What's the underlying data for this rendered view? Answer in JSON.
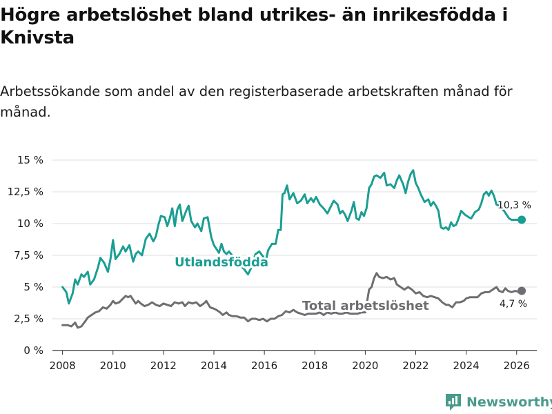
{
  "title": "Högre arbetslöshet bland utrikes- än inrikesfödda i Knivsta",
  "subtitle": "Arbetssökande som andel av den registerbaserade arbetskraften månad för månad.",
  "brand": {
    "name": "Newsworthy",
    "color": "#4a9a8c"
  },
  "chart_data": {
    "type": "line",
    "title": "Högre arbetslöshet bland utrikes- än inrikesfödda i Knivsta",
    "xlabel": "",
    "ylabel": "",
    "xlim": [
      2007.6,
      2026.8
    ],
    "ylim": [
      0,
      15
    ],
    "grid": true,
    "x_ticks": [
      2008,
      2010,
      2012,
      2014,
      2016,
      2018,
      2020,
      2022,
      2024,
      2026
    ],
    "x_tick_labels": [
      "2008",
      "2010",
      "2012",
      "2014",
      "2016",
      "2018",
      "2020",
      "2022",
      "2024",
      "2026"
    ],
    "y_ticks": [
      0,
      2.5,
      5,
      7.5,
      10,
      12.5,
      15
    ],
    "y_tick_labels": [
      "0 %",
      "2,5 %",
      "5 %",
      "7,5 %",
      "10 %",
      "12,5 %",
      "15 %"
    ],
    "series": [
      {
        "name": "Utlandsfödda",
        "color": "#1a9e93",
        "end_label": "10,3 %",
        "points": [
          [
            2008.0,
            5.0
          ],
          [
            2008.15,
            4.6
          ],
          [
            2008.25,
            3.7
          ],
          [
            2008.4,
            4.5
          ],
          [
            2008.5,
            5.6
          ],
          [
            2008.6,
            5.2
          ],
          [
            2008.75,
            6.0
          ],
          [
            2008.85,
            5.8
          ],
          [
            2009.0,
            6.2
          ],
          [
            2009.1,
            5.2
          ],
          [
            2009.25,
            5.6
          ],
          [
            2009.4,
            6.5
          ],
          [
            2009.5,
            7.3
          ],
          [
            2009.65,
            6.9
          ],
          [
            2009.8,
            6.2
          ],
          [
            2009.9,
            7.2
          ],
          [
            2010.0,
            8.7
          ],
          [
            2010.1,
            7.2
          ],
          [
            2010.25,
            7.6
          ],
          [
            2010.4,
            8.2
          ],
          [
            2010.5,
            7.8
          ],
          [
            2010.65,
            8.3
          ],
          [
            2010.8,
            7.0
          ],
          [
            2010.9,
            7.6
          ],
          [
            2011.0,
            7.8
          ],
          [
            2011.15,
            7.5
          ],
          [
            2011.3,
            8.8
          ],
          [
            2011.45,
            9.2
          ],
          [
            2011.6,
            8.6
          ],
          [
            2011.7,
            9.0
          ],
          [
            2011.8,
            9.9
          ],
          [
            2011.9,
            10.6
          ],
          [
            2012.05,
            10.5
          ],
          [
            2012.15,
            9.8
          ],
          [
            2012.25,
            10.4
          ],
          [
            2012.35,
            11.2
          ],
          [
            2012.45,
            9.8
          ],
          [
            2012.55,
            11.1
          ],
          [
            2012.65,
            11.5
          ],
          [
            2012.75,
            10.2
          ],
          [
            2012.9,
            11.0
          ],
          [
            2013.0,
            11.4
          ],
          [
            2013.1,
            10.2
          ],
          [
            2013.25,
            9.7
          ],
          [
            2013.35,
            10.0
          ],
          [
            2013.5,
            9.4
          ],
          [
            2013.6,
            10.4
          ],
          [
            2013.75,
            10.5
          ],
          [
            2013.9,
            8.9
          ],
          [
            2014.0,
            8.3
          ],
          [
            2014.1,
            8.0
          ],
          [
            2014.2,
            7.7
          ],
          [
            2014.3,
            8.4
          ],
          [
            2014.4,
            7.8
          ],
          [
            2014.5,
            7.6
          ],
          [
            2014.6,
            7.8
          ],
          [
            2014.8,
            7.3
          ],
          [
            2015.0,
            6.8
          ],
          [
            2015.2,
            6.4
          ],
          [
            2015.35,
            6.0
          ],
          [
            2015.5,
            6.6
          ],
          [
            2015.65,
            7.6
          ],
          [
            2015.8,
            7.8
          ],
          [
            2015.95,
            7.4
          ],
          [
            2016.05,
            7.0
          ],
          [
            2016.15,
            7.9
          ],
          [
            2016.3,
            8.4
          ],
          [
            2016.45,
            8.4
          ],
          [
            2016.55,
            9.5
          ],
          [
            2016.65,
            9.5
          ],
          [
            2016.72,
            12.3
          ],
          [
            2016.8,
            12.4
          ],
          [
            2016.9,
            13.0
          ],
          [
            2017.0,
            11.9
          ],
          [
            2017.15,
            12.4
          ],
          [
            2017.3,
            11.6
          ],
          [
            2017.45,
            11.8
          ],
          [
            2017.6,
            12.3
          ],
          [
            2017.7,
            11.6
          ],
          [
            2017.85,
            12.0
          ],
          [
            2017.95,
            11.7
          ],
          [
            2018.05,
            12.1
          ],
          [
            2018.2,
            11.5
          ],
          [
            2018.35,
            11.2
          ],
          [
            2018.5,
            10.8
          ],
          [
            2018.65,
            11.4
          ],
          [
            2018.75,
            11.8
          ],
          [
            2018.9,
            11.5
          ],
          [
            2019.0,
            10.8
          ],
          [
            2019.1,
            11.0
          ],
          [
            2019.2,
            10.7
          ],
          [
            2019.3,
            10.2
          ],
          [
            2019.45,
            11.0
          ],
          [
            2019.55,
            11.7
          ],
          [
            2019.65,
            10.4
          ],
          [
            2019.75,
            10.3
          ],
          [
            2019.85,
            10.9
          ],
          [
            2019.95,
            10.6
          ],
          [
            2020.05,
            11.2
          ],
          [
            2020.15,
            12.8
          ],
          [
            2020.25,
            13.1
          ],
          [
            2020.35,
            13.7
          ],
          [
            2020.45,
            13.8
          ],
          [
            2020.6,
            13.6
          ],
          [
            2020.75,
            14.0
          ],
          [
            2020.85,
            13.0
          ],
          [
            2021.0,
            13.1
          ],
          [
            2021.15,
            12.8
          ],
          [
            2021.25,
            13.4
          ],
          [
            2021.35,
            13.8
          ],
          [
            2021.5,
            13.1
          ],
          [
            2021.6,
            12.4
          ],
          [
            2021.7,
            13.3
          ],
          [
            2021.8,
            13.9
          ],
          [
            2021.9,
            14.2
          ],
          [
            2022.0,
            13.2
          ],
          [
            2022.1,
            12.8
          ],
          [
            2022.2,
            12.3
          ],
          [
            2022.35,
            11.7
          ],
          [
            2022.5,
            11.9
          ],
          [
            2022.6,
            11.4
          ],
          [
            2022.7,
            11.7
          ],
          [
            2022.8,
            11.4
          ],
          [
            2022.9,
            11.0
          ],
          [
            2023.0,
            9.7
          ],
          [
            2023.1,
            9.6
          ],
          [
            2023.2,
            9.7
          ],
          [
            2023.3,
            9.5
          ],
          [
            2023.4,
            10.1
          ],
          [
            2023.5,
            9.8
          ],
          [
            2023.6,
            9.9
          ],
          [
            2023.7,
            10.4
          ],
          [
            2023.8,
            11.0
          ],
          [
            2023.95,
            10.7
          ],
          [
            2024.1,
            10.5
          ],
          [
            2024.2,
            10.4
          ],
          [
            2024.35,
            10.9
          ],
          [
            2024.5,
            11.1
          ],
          [
            2024.6,
            11.6
          ],
          [
            2024.7,
            12.3
          ],
          [
            2024.8,
            12.5
          ],
          [
            2024.9,
            12.2
          ],
          [
            2025.0,
            12.6
          ],
          [
            2025.1,
            12.2
          ],
          [
            2025.2,
            11.5
          ],
          [
            2025.3,
            11.4
          ],
          [
            2025.4,
            11.2
          ],
          [
            2025.5,
            11.0
          ],
          [
            2025.6,
            10.7
          ],
          [
            2025.7,
            10.4
          ],
          [
            2025.8,
            10.3
          ],
          [
            2026.0,
            10.3
          ],
          [
            2026.2,
            10.3
          ]
        ]
      },
      {
        "name": "Total arbetslöshet",
        "color": "#6e6e72",
        "end_label": "4,7 %",
        "points": [
          [
            2008.0,
            2.0
          ],
          [
            2008.2,
            2.0
          ],
          [
            2008.35,
            1.9
          ],
          [
            2008.5,
            2.2
          ],
          [
            2008.6,
            1.8
          ],
          [
            2008.75,
            1.9
          ],
          [
            2008.9,
            2.3
          ],
          [
            2009.0,
            2.6
          ],
          [
            2009.15,
            2.8
          ],
          [
            2009.3,
            3.0
          ],
          [
            2009.45,
            3.1
          ],
          [
            2009.6,
            3.4
          ],
          [
            2009.75,
            3.3
          ],
          [
            2009.9,
            3.6
          ],
          [
            2010.0,
            3.9
          ],
          [
            2010.1,
            3.7
          ],
          [
            2010.25,
            3.8
          ],
          [
            2010.35,
            4.0
          ],
          [
            2010.5,
            4.3
          ],
          [
            2010.6,
            4.2
          ],
          [
            2010.7,
            4.3
          ],
          [
            2010.8,
            4.0
          ],
          [
            2010.9,
            3.7
          ],
          [
            2011.0,
            3.9
          ],
          [
            2011.1,
            3.7
          ],
          [
            2011.25,
            3.5
          ],
          [
            2011.4,
            3.6
          ],
          [
            2011.55,
            3.8
          ],
          [
            2011.7,
            3.6
          ],
          [
            2011.85,
            3.5
          ],
          [
            2012.0,
            3.7
          ],
          [
            2012.15,
            3.6
          ],
          [
            2012.3,
            3.5
          ],
          [
            2012.45,
            3.8
          ],
          [
            2012.6,
            3.7
          ],
          [
            2012.75,
            3.8
          ],
          [
            2012.85,
            3.5
          ],
          [
            2013.0,
            3.8
          ],
          [
            2013.15,
            3.7
          ],
          [
            2013.3,
            3.8
          ],
          [
            2013.45,
            3.5
          ],
          [
            2013.6,
            3.7
          ],
          [
            2013.7,
            3.9
          ],
          [
            2013.85,
            3.4
          ],
          [
            2014.0,
            3.3
          ],
          [
            2014.1,
            3.2
          ],
          [
            2014.25,
            3.0
          ],
          [
            2014.35,
            2.8
          ],
          [
            2014.5,
            3.0
          ],
          [
            2014.6,
            2.8
          ],
          [
            2014.75,
            2.7
          ],
          [
            2014.9,
            2.7
          ],
          [
            2015.05,
            2.6
          ],
          [
            2015.2,
            2.6
          ],
          [
            2015.35,
            2.3
          ],
          [
            2015.5,
            2.5
          ],
          [
            2015.65,
            2.5
          ],
          [
            2015.8,
            2.4
          ],
          [
            2015.95,
            2.5
          ],
          [
            2016.1,
            2.3
          ],
          [
            2016.25,
            2.5
          ],
          [
            2016.4,
            2.5
          ],
          [
            2016.55,
            2.7
          ],
          [
            2016.7,
            2.8
          ],
          [
            2016.85,
            3.1
          ],
          [
            2017.0,
            3.0
          ],
          [
            2017.15,
            3.2
          ],
          [
            2017.3,
            3.0
          ],
          [
            2017.45,
            2.9
          ],
          [
            2017.6,
            2.8
          ],
          [
            2017.75,
            2.9
          ],
          [
            2017.9,
            2.9
          ],
          [
            2018.05,
            2.9
          ],
          [
            2018.2,
            3.0
          ],
          [
            2018.35,
            2.8
          ],
          [
            2018.5,
            3.0
          ],
          [
            2018.65,
            2.9
          ],
          [
            2018.8,
            3.0
          ],
          [
            2018.95,
            2.9
          ],
          [
            2019.1,
            2.9
          ],
          [
            2019.25,
            3.0
          ],
          [
            2019.4,
            2.9
          ],
          [
            2019.55,
            2.9
          ],
          [
            2019.7,
            2.9
          ],
          [
            2019.85,
            3.0
          ],
          [
            2020.0,
            3.0
          ],
          [
            2020.15,
            4.8
          ],
          [
            2020.25,
            5.0
          ],
          [
            2020.35,
            5.7
          ],
          [
            2020.45,
            6.1
          ],
          [
            2020.55,
            5.8
          ],
          [
            2020.7,
            5.7
          ],
          [
            2020.85,
            5.8
          ],
          [
            2021.0,
            5.6
          ],
          [
            2021.15,
            5.7
          ],
          [
            2021.25,
            5.2
          ],
          [
            2021.4,
            5.0
          ],
          [
            2021.55,
            4.8
          ],
          [
            2021.7,
            5.0
          ],
          [
            2021.85,
            4.8
          ],
          [
            2022.0,
            4.5
          ],
          [
            2022.15,
            4.6
          ],
          [
            2022.3,
            4.3
          ],
          [
            2022.45,
            4.2
          ],
          [
            2022.6,
            4.3
          ],
          [
            2022.75,
            4.2
          ],
          [
            2022.9,
            4.1
          ],
          [
            2023.05,
            3.8
          ],
          [
            2023.2,
            3.6
          ],
          [
            2023.3,
            3.6
          ],
          [
            2023.45,
            3.4
          ],
          [
            2023.6,
            3.8
          ],
          [
            2023.75,
            3.8
          ],
          [
            2023.9,
            3.9
          ],
          [
            2024.0,
            4.1
          ],
          [
            2024.15,
            4.2
          ],
          [
            2024.3,
            4.2
          ],
          [
            2024.45,
            4.2
          ],
          [
            2024.6,
            4.5
          ],
          [
            2024.75,
            4.6
          ],
          [
            2024.9,
            4.6
          ],
          [
            2025.05,
            4.8
          ],
          [
            2025.2,
            5.0
          ],
          [
            2025.3,
            4.7
          ],
          [
            2025.45,
            4.6
          ],
          [
            2025.55,
            4.9
          ],
          [
            2025.65,
            4.7
          ],
          [
            2025.8,
            4.6
          ],
          [
            2025.95,
            4.7
          ],
          [
            2026.1,
            4.6
          ],
          [
            2026.2,
            4.7
          ]
        ]
      }
    ]
  }
}
